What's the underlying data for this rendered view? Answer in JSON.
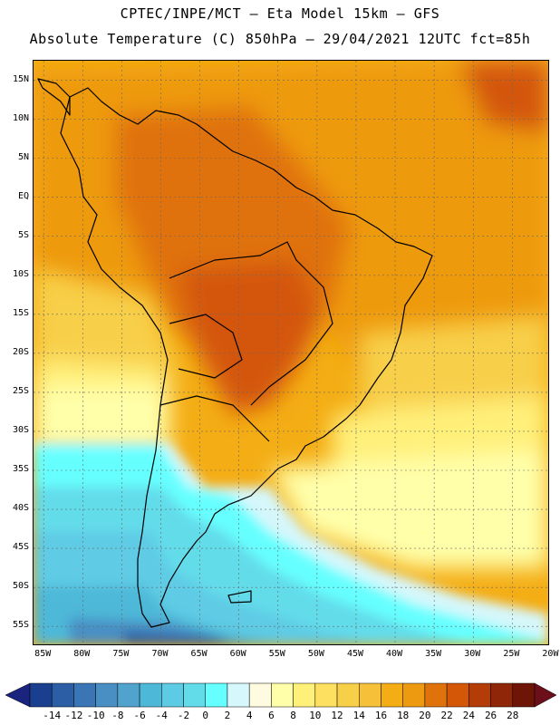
{
  "header": {
    "line1": "CPTEC/INPE/MCT —  Eta Model 15km — GFS",
    "line2": "Absolute Temperature (C) 850hPa — 29/04/2021 12UTC fct=85h"
  },
  "map": {
    "lat_ticks": [
      {
        "label": "15N",
        "value": 15
      },
      {
        "label": "10N",
        "value": 10
      },
      {
        "label": "5N",
        "value": 5
      },
      {
        "label": "EQ",
        "value": 0
      },
      {
        "label": "5S",
        "value": -5
      },
      {
        "label": "10S",
        "value": -10
      },
      {
        "label": "15S",
        "value": -15
      },
      {
        "label": "20S",
        "value": -20
      },
      {
        "label": "25S",
        "value": -25
      },
      {
        "label": "30S",
        "value": -30
      },
      {
        "label": "35S",
        "value": -35
      },
      {
        "label": "40S",
        "value": -40
      },
      {
        "label": "45S",
        "value": -45
      },
      {
        "label": "50S",
        "value": -50
      },
      {
        "label": "55S",
        "value": -55
      }
    ],
    "lon_ticks": [
      {
        "label": "85W",
        "value": -85
      },
      {
        "label": "80W",
        "value": -80
      },
      {
        "label": "75W",
        "value": -75
      },
      {
        "label": "70W",
        "value": -70
      },
      {
        "label": "65W",
        "value": -65
      },
      {
        "label": "60W",
        "value": -60
      },
      {
        "label": "55W",
        "value": -55
      },
      {
        "label": "50W",
        "value": -50
      },
      {
        "label": "45W",
        "value": -45
      },
      {
        "label": "40W",
        "value": -40
      },
      {
        "label": "35W",
        "value": -35
      },
      {
        "label": "30W",
        "value": -30
      },
      {
        "label": "25W",
        "value": -25
      },
      {
        "label": "20W",
        "value": -20
      }
    ]
  },
  "colorbar": {
    "labels": [
      "-14",
      "-12",
      "-10",
      "-8",
      "-6",
      "-4",
      "-2",
      "0",
      "2",
      "4",
      "6",
      "8",
      "10",
      "12",
      "14",
      "16",
      "18",
      "20",
      "22",
      "24",
      "26",
      "28"
    ],
    "colors": [
      "#1b3f8f",
      "#2c5ea6",
      "#3a76b5",
      "#4a8fc4",
      "#4fa3cc",
      "#4db8d8",
      "#5ecbe4",
      "#63dcea",
      "#66ffff",
      "#d6f7fb",
      "#fffbe0",
      "#ffffaa",
      "#fff07a",
      "#fde060",
      "#f8cf48",
      "#f6c038",
      "#f4ad14",
      "#ee9a10",
      "#e0720b",
      "#d45708",
      "#b43c07",
      "#8f2607",
      "#6e1508"
    ],
    "arrow_left_color": "#1a237e",
    "arrow_right_color": "#6b0f1a"
  }
}
